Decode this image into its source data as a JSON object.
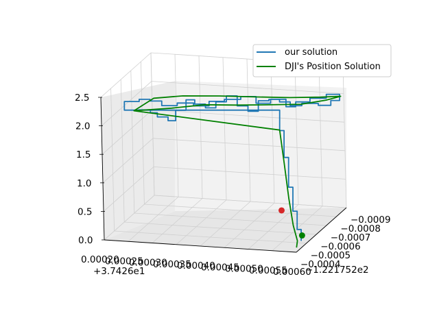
{
  "chart_data": {
    "type": "line3d",
    "title": "",
    "legend": {
      "placement": "upper-right",
      "entries": [
        {
          "label": "our solution",
          "color": "#1f77b4"
        },
        {
          "label": "DJI's Position Solution",
          "color": "#008000"
        }
      ]
    },
    "x_axis": {
      "ticks": [
        "0.00020",
        "0.00025",
        "0.00030",
        "0.00035",
        "0.00040",
        "0.00045",
        "0.00050",
        "0.00055",
        "0.00060"
      ],
      "offset": "+3.7426e1"
    },
    "y_axis": {
      "ticks": [
        "−0.0009",
        "−0.0008",
        "−0.0007",
        "−0.0006",
        "−0.0005",
        "−0.0004"
      ],
      "offset": "−1.221752e2"
    },
    "z_axis": {
      "ticks": [
        "0.0",
        "0.5",
        "1.0",
        "1.5",
        "2.0",
        "2.5"
      ],
      "range": [
        0,
        2.5
      ]
    },
    "grid": true,
    "series": [
      {
        "name": "our solution",
        "color": "#1f77b4",
        "description": "staircase trace looping at ~1.9–2.2 m altitude, descending near the far-right end",
        "points": [
          [
            0.00021,
            -0.00058,
            2.0
          ],
          [
            0.00024,
            -0.00058,
            2.02
          ],
          [
            0.00026,
            -0.0006,
            1.95
          ],
          [
            0.00027,
            -0.00062,
            1.85
          ],
          [
            0.00029,
            -0.00063,
            1.78
          ],
          [
            0.0003,
            -0.00066,
            1.92
          ],
          [
            0.00032,
            -0.00067,
            2.1
          ],
          [
            0.00034,
            -0.00066,
            2.05
          ],
          [
            0.00036,
            -0.00067,
            1.98
          ],
          [
            0.00038,
            -0.00068,
            2.08
          ],
          [
            0.0004,
            -0.00069,
            2.18
          ],
          [
            0.00042,
            -0.0007,
            2.0
          ],
          [
            0.00044,
            -0.00071,
            1.9
          ],
          [
            0.00046,
            -0.00072,
            2.08
          ],
          [
            0.00048,
            -0.00073,
            2.1
          ],
          [
            0.0005,
            -0.00074,
            2.05
          ],
          [
            0.00052,
            -0.00075,
            1.98
          ],
          [
            0.00054,
            -0.00077,
            2.0
          ],
          [
            0.00057,
            -0.00079,
            1.95
          ],
          [
            0.00059,
            -0.00082,
            2.0
          ],
          [
            0.0006,
            -0.00086,
            2.05
          ],
          [
            0.00057,
            -0.00087,
            1.95
          ],
          [
            0.00054,
            -0.00085,
            1.9
          ],
          [
            0.00051,
            -0.00085,
            1.8
          ],
          [
            0.00049,
            -0.00085,
            1.92
          ],
          [
            0.00046,
            -0.00084,
            1.85
          ],
          [
            0.00043,
            -0.00084,
            1.95
          ],
          [
            0.0004,
            -0.00083,
            1.9
          ],
          [
            0.00037,
            -0.00081,
            1.88
          ],
          [
            0.00034,
            -0.0008,
            1.8
          ],
          [
            0.00031,
            -0.00079,
            1.85
          ],
          [
            0.00028,
            -0.00077,
            1.82
          ],
          [
            0.00025,
            -0.00076,
            1.9
          ],
          [
            0.00023,
            -0.00074,
            1.95
          ],
          [
            0.00022,
            -0.00068,
            2.0
          ],
          [
            0.00021,
            -0.00058,
            2.0
          ],
          [
            0.00055,
            -0.0005,
            1.95
          ],
          [
            0.00056,
            -0.00049,
            1.5
          ],
          [
            0.00057,
            -0.00048,
            1.0
          ],
          [
            0.00058,
            -0.00047,
            0.6
          ],
          [
            0.00059,
            -0.00046,
            0.3
          ],
          [
            0.0006,
            -0.00045,
            0.12
          ]
        ]
      },
      {
        "name": "DJI's Position Solution",
        "color": "#008000",
        "description": "smooth rectangular loop at ~2.0 m altitude with vertical descent at the end",
        "points": [
          [
            0.00023,
            -0.00058,
            2.0
          ],
          [
            0.0003,
            -0.00062,
            2.02
          ],
          [
            0.00036,
            -0.00066,
            2.05
          ],
          [
            0.00042,
            -0.00069,
            2.03
          ],
          [
            0.00048,
            -0.00072,
            2.02
          ],
          [
            0.00054,
            -0.00076,
            2.0
          ],
          [
            0.00058,
            -0.00082,
            2.0
          ],
          [
            0.0006,
            -0.00087,
            2.0
          ],
          [
            0.00056,
            -0.00086,
            1.98
          ],
          [
            0.0005,
            -0.00084,
            1.97
          ],
          [
            0.00043,
            -0.00083,
            1.96
          ],
          [
            0.00036,
            -0.00081,
            1.97
          ],
          [
            0.00029,
            -0.00078,
            1.98
          ],
          [
            0.00024,
            -0.00073,
            1.99
          ],
          [
            0.00023,
            -0.00058,
            2.0
          ],
          [
            0.00055,
            -0.0005,
            1.96
          ],
          [
            0.00056,
            -0.00049,
            1.4
          ],
          [
            0.00057,
            -0.00048,
            0.8
          ],
          [
            0.00058,
            -0.00047,
            0.35
          ],
          [
            0.00059,
            -0.00046,
            0.1
          ],
          [
            0.00059,
            -0.00045,
            0.0
          ]
        ]
      }
    ],
    "markers": [
      {
        "label": "end-marker-red",
        "color": "#d62728",
        "position": [
          0.00055,
          -0.0005,
          0.55
        ]
      },
      {
        "label": "start-marker-green",
        "color": "#008000",
        "position": [
          0.0006,
          -0.00046,
          0.2
        ]
      }
    ]
  }
}
